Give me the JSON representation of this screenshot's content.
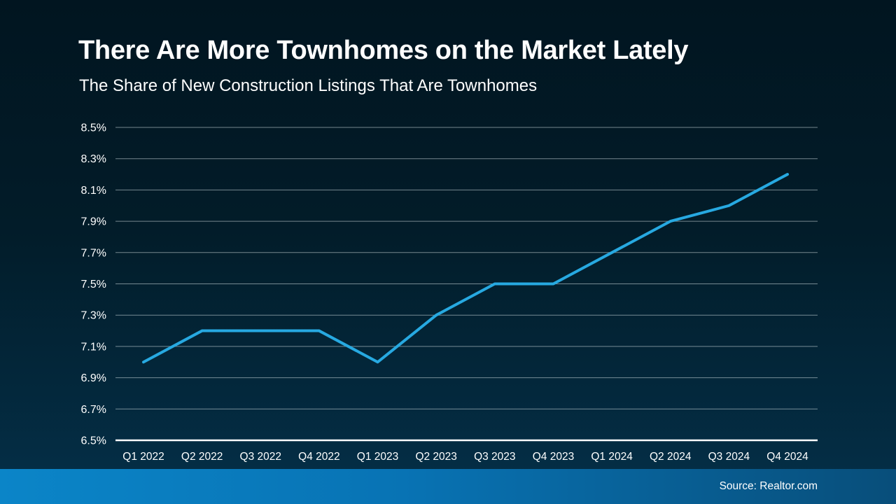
{
  "header": {
    "title": "There Are More Townhomes on the Market Lately",
    "subtitle": "The Share of New Construction Listings That Are Townhomes"
  },
  "chart_data": {
    "type": "line",
    "title": "There Are More Townhomes on the Market Lately",
    "subtitle": "The Share of New Construction Listings That Are Townhomes",
    "categories": [
      "Q1 2022",
      "Q2 2022",
      "Q3 2022",
      "Q4 2022",
      "Q1 2023",
      "Q2 2023",
      "Q3 2023",
      "Q4 2023",
      "Q1 2024",
      "Q2 2024",
      "Q3 2024",
      "Q4 2024"
    ],
    "series": [
      {
        "name": "Share of new construction listings that are townhomes",
        "values": [
          7.0,
          7.2,
          7.2,
          7.2,
          7.0,
          7.3,
          7.5,
          7.5,
          7.7,
          7.9,
          8.0,
          8.2
        ]
      }
    ],
    "unit": "%",
    "xlabel": "",
    "ylabel": "",
    "ylim": [
      6.5,
      8.5
    ],
    "ytick_step": 0.2,
    "ytick_labels": [
      "6.5%",
      "6.7%",
      "6.9%",
      "7.1%",
      "7.3%",
      "7.5%",
      "7.7%",
      "7.9%",
      "8.1%",
      "8.3%",
      "8.5%"
    ],
    "grid": true,
    "legend": "none"
  },
  "footer": {
    "source": "Source: Realtor.com"
  },
  "colors": {
    "background_top": "#011520",
    "background_mid": "#021c29",
    "background_bottom": "#043049",
    "text": "#ffffff",
    "gridline": "rgba(214,224,228,0.55)",
    "axis_line": "#ffffff",
    "accent_line": "#27A9E1",
    "footer_bar_left": "#0B85C8",
    "footer_bar_mid": "#0873B4",
    "footer_bar_right": "#084E7A"
  }
}
